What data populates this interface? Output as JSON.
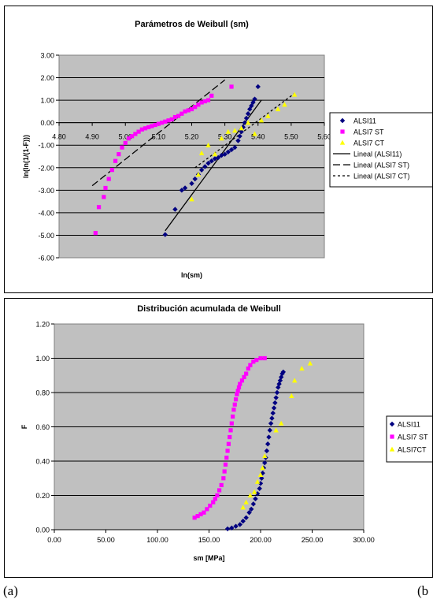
{
  "captions": {
    "left": "(a)",
    "right": "(b"
  },
  "chart_data": [
    {
      "type": "scatter",
      "title": "Parámetros de Weibull (sm)",
      "xlabel": "ln(sm)",
      "ylabel": "ln(ln(1/(1-F)))",
      "xlim": [
        4.8,
        5.6
      ],
      "ylim": [
        -6.0,
        3.0
      ],
      "x_ticks": [
        "4.80",
        "4.90",
        "5.00",
        "5.10",
        "5.20",
        "5.30",
        "5.40",
        "5.50",
        "5.60"
      ],
      "y_ticks": [
        "3.00",
        "2.00",
        "1.00",
        "0.00",
        "-1.00",
        "-2.00",
        "-3.00",
        "-4.00",
        "-5.00",
        "-6.00"
      ],
      "grid": true,
      "legend_position": "right",
      "plot_background": "#c0c0c0",
      "series": [
        {
          "name": "ALSI11",
          "marker": "diamond",
          "color": "#000080",
          "x": [
            5.12,
            5.15,
            5.17,
            5.18,
            5.2,
            5.21,
            5.22,
            5.23,
            5.24,
            5.25,
            5.26,
            5.27,
            5.28,
            5.29,
            5.3,
            5.31,
            5.32,
            5.33,
            5.34,
            5.345,
            5.35,
            5.355,
            5.36,
            5.365,
            5.37,
            5.375,
            5.38,
            5.385,
            5.39,
            5.4
          ],
          "y": [
            -4.97,
            -3.85,
            -3.0,
            -2.9,
            -2.7,
            -2.5,
            -2.3,
            -2.1,
            -1.95,
            -1.8,
            -1.7,
            -1.6,
            -1.55,
            -1.45,
            -1.4,
            -1.3,
            -1.2,
            -1.1,
            -0.8,
            -0.6,
            -0.4,
            -0.2,
            0.0,
            0.2,
            0.4,
            0.6,
            0.75,
            0.9,
            1.05,
            1.6
          ]
        },
        {
          "name": "ALSI7 ST",
          "marker": "square",
          "color": "#ff00ff",
          "x": [
            4.91,
            4.92,
            4.935,
            4.94,
            4.95,
            4.96,
            4.97,
            4.98,
            4.99,
            5.0,
            5.01,
            5.02,
            5.03,
            5.04,
            5.05,
            5.06,
            5.07,
            5.08,
            5.09,
            5.1,
            5.11,
            5.12,
            5.13,
            5.14,
            5.15,
            5.16,
            5.17,
            5.18,
            5.19,
            5.2,
            5.21,
            5.22,
            5.23,
            5.24,
            5.25,
            5.26,
            5.32
          ],
          "y": [
            -4.9,
            -3.75,
            -3.3,
            -2.9,
            -2.5,
            -2.1,
            -1.7,
            -1.4,
            -1.1,
            -0.9,
            -0.7,
            -0.6,
            -0.5,
            -0.4,
            -0.3,
            -0.25,
            -0.2,
            -0.15,
            -0.1,
            -0.05,
            0.0,
            0.05,
            0.1,
            0.15,
            0.25,
            0.3,
            0.4,
            0.5,
            0.55,
            0.6,
            0.7,
            0.8,
            0.9,
            0.95,
            1.0,
            1.2,
            1.6
          ]
        },
        {
          "name": "ALSI7 CT",
          "marker": "triangle",
          "color": "#ffff00",
          "x": [
            5.2,
            5.22,
            5.23,
            5.25,
            5.27,
            5.29,
            5.31,
            5.33,
            5.35,
            5.37,
            5.39,
            5.41,
            5.43,
            5.46,
            5.48,
            5.51
          ],
          "y": [
            -3.4,
            -2.3,
            -1.35,
            -1.0,
            -1.4,
            -0.7,
            -0.4,
            -0.35,
            -0.25,
            0.0,
            -0.5,
            0.1,
            0.3,
            0.6,
            0.8,
            1.25
          ]
        }
      ],
      "trendlines": [
        {
          "name": "Lineal (ALSI11)",
          "style": "solid",
          "color": "#000000",
          "x": [
            5.12,
            5.41
          ],
          "y": [
            -4.8,
            1.0
          ]
        },
        {
          "name": "Lineal (ALSI7 ST)",
          "style": "long-dash",
          "color": "#000000",
          "x": [
            4.9,
            5.3
          ],
          "y": [
            -2.8,
            1.9
          ]
        },
        {
          "name": "Lineal (ALSI7 CT)",
          "style": "dotted",
          "color": "#000000",
          "x": [
            5.21,
            5.51
          ],
          "y": [
            -2.0,
            1.3
          ]
        }
      ]
    },
    {
      "type": "scatter",
      "title": "Distribución acumulada de Weibull",
      "xlabel": "sm [MPa]",
      "ylabel": "F",
      "xlim": [
        0,
        300
      ],
      "ylim": [
        0,
        1.2
      ],
      "x_ticks": [
        "0.00",
        "50.00",
        "100.00",
        "150.00",
        "200.00",
        "250.00",
        "300.00"
      ],
      "y_ticks": [
        "1.20",
        "1.00",
        "0.80",
        "0.60",
        "0.40",
        "0.20",
        "0.00"
      ],
      "grid": true,
      "legend_position": "right",
      "plot_background": "#c0c0c0",
      "series": [
        {
          "name": "ALSI11",
          "marker": "diamond",
          "color": "#000080",
          "x": [
            168,
            172,
            176,
            180,
            183,
            186,
            189,
            191,
            193,
            195,
            197,
            199,
            200,
            201,
            202,
            203,
            204,
            205,
            206,
            207,
            208,
            209,
            210,
            211,
            212,
            213,
            214,
            215,
            216,
            217,
            218,
            219,
            220,
            221,
            222
          ],
          "y": [
            0.005,
            0.01,
            0.02,
            0.03,
            0.05,
            0.07,
            0.1,
            0.12,
            0.15,
            0.18,
            0.21,
            0.24,
            0.27,
            0.3,
            0.33,
            0.36,
            0.39,
            0.42,
            0.46,
            0.5,
            0.54,
            0.58,
            0.62,
            0.65,
            0.68,
            0.71,
            0.74,
            0.77,
            0.8,
            0.83,
            0.85,
            0.87,
            0.89,
            0.91,
            0.92
          ]
        },
        {
          "name": "ALSI7 ST",
          "marker": "square",
          "color": "#ff00ff",
          "x": [
            136,
            139,
            142,
            145,
            148,
            151,
            154,
            156,
            158,
            160,
            162,
            164,
            165,
            166,
            167,
            168,
            169,
            170,
            171,
            172,
            173,
            174,
            175,
            176,
            177,
            178,
            179,
            180,
            182,
            184,
            186,
            188,
            190,
            193,
            196,
            200,
            204
          ],
          "y": [
            0.07,
            0.08,
            0.09,
            0.1,
            0.12,
            0.14,
            0.16,
            0.18,
            0.2,
            0.23,
            0.26,
            0.3,
            0.34,
            0.38,
            0.42,
            0.46,
            0.5,
            0.54,
            0.58,
            0.62,
            0.66,
            0.7,
            0.73,
            0.76,
            0.79,
            0.81,
            0.83,
            0.85,
            0.87,
            0.89,
            0.91,
            0.94,
            0.96,
            0.98,
            0.99,
            1.0,
            1.0
          ]
        },
        {
          "name": "ALSI7CT",
          "marker": "triangle",
          "color": "#ffff00",
          "x": [
            183,
            186,
            190,
            194,
            197,
            200,
            202,
            204,
            215,
            220,
            230,
            233,
            240,
            248
          ],
          "y": [
            0.13,
            0.16,
            0.2,
            0.22,
            0.28,
            0.32,
            0.36,
            0.43,
            0.58,
            0.62,
            0.78,
            0.87,
            0.94,
            0.97
          ]
        }
      ]
    }
  ]
}
